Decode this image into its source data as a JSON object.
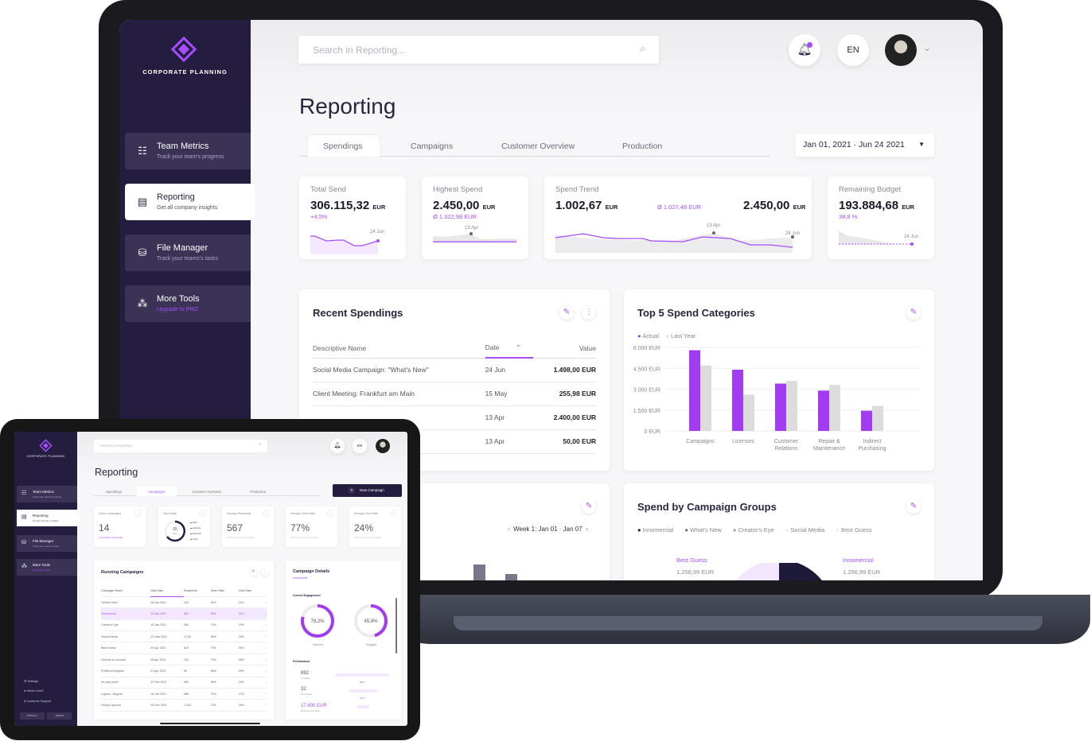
{
  "brand": {
    "name": "CORPORATE PLANNING",
    "accent": "#a64dff",
    "sidebar_bg": "#241d3f"
  },
  "sidebar": {
    "items": [
      {
        "label": "Team Metrics",
        "sub": "Track your team's progress",
        "icon": "team-icon"
      },
      {
        "label": "Reporting",
        "sub": "Get all company insights",
        "icon": "report-icon"
      },
      {
        "label": "File Manager",
        "sub": "Track your teams's tasks",
        "icon": "database-icon"
      },
      {
        "label": "More Tools",
        "sub": "Upgrade to PRO",
        "icon": "tools-icon"
      }
    ],
    "footer": [
      "Settings",
      "What's new?",
      "Customer Support"
    ],
    "links": [
      "PRIVACY",
      "TERMS"
    ]
  },
  "header": {
    "search_placeholder": "Search in Reporting...",
    "language": "EN"
  },
  "page": {
    "title": "Reporting",
    "tabs": [
      "Spendings",
      "Campaigns",
      "Customer Overview",
      "Production"
    ],
    "date_range": "Jan 01, 2021 · Jun 24 2021",
    "new_campaign": "New Campaign"
  },
  "kpis": {
    "total": {
      "label": "Total Send",
      "value": "306.115,32",
      "unit": "EUR",
      "delta": "+4,5%",
      "marker": "24 Jun"
    },
    "highest": {
      "label": "Highest Spend",
      "value": "2.450,00",
      "unit": "EUR",
      "avg": "Ø 1.322,98 EUR",
      "marker": "13 Apr"
    },
    "trend": {
      "label": "Spend Trend",
      "value": "1.002,67",
      "unit": "EUR",
      "avg": "Ø 1.027,48 EUR",
      "value2": "2.450,00",
      "marker1": "13 Apr",
      "marker2": "24 Jun"
    },
    "budget": {
      "label": "Remaining Budget",
      "value": "193.884,68",
      "unit": "EUR",
      "pct": "38,8 %",
      "marker": "24 Jun"
    }
  },
  "recent": {
    "title": "Recent Spendings",
    "columns": [
      "Descriptive Name",
      "Date",
      "Value"
    ],
    "rows": [
      {
        "name": "Social Media Campaign: \"What's New\"",
        "date": "24 Jun",
        "value": "1.498,00 EUR"
      },
      {
        "name": "Client Meeting: Frankfurt am Main",
        "date": "15 May",
        "value": "255,98 EUR"
      },
      {
        "name": "",
        "date": "13 Apr",
        "value": "2.400,00 EUR"
      },
      {
        "name": "",
        "date": "13 Apr",
        "value": "50,00 EUR"
      }
    ]
  },
  "top5": {
    "title": "Top 5 Spend Categories",
    "chart_data": {
      "type": "bar",
      "categories": [
        "Campaigns",
        "Licenses",
        "Customer Relations",
        "Repair & Maintenance",
        "Indirect Purchasing"
      ],
      "series": [
        {
          "name": "Actual",
          "color": "#a23cf0",
          "values": [
            5800,
            4400,
            3400,
            2900,
            1450
          ]
        },
        {
          "name": "Last Year",
          "color": "#dcdcdf",
          "values": [
            4700,
            2600,
            3600,
            3300,
            1800
          ]
        }
      ],
      "yticks": [
        "6.000 EUR",
        "4.500 EUR",
        "3.000 EUR",
        "1.500 EUR",
        "0 EUR"
      ],
      "ylim": [
        0,
        6000
      ]
    }
  },
  "weekly": {
    "week": "Week 1: Jan 01 · Jan 07"
  },
  "groups": {
    "title": "Spend by Campaign Groups",
    "legend": [
      "Innomercial",
      "What's New",
      "Creator's Eye",
      "Social Media",
      "Best Guess"
    ],
    "legend_colors": [
      "#1e1a3a",
      "#6e6a7e",
      "#9a9a9e",
      "#e6e6ea",
      "#f2e6ff"
    ],
    "labels": [
      {
        "name": "Best Guess",
        "value": "1.256,99 EUR"
      },
      {
        "name": "Innomercial",
        "value": "1.256,99 EUR"
      }
    ]
  },
  "tablet": {
    "kpis": [
      {
        "label": "Active Campaigns",
        "value": "14",
        "sub": "2 campaigns ending today"
      },
      {
        "label": "New Deals",
        "value": "65",
        "sub": "Ges.",
        "legend": [
          "SEO",
          "Adwords",
          "Referrals",
          "Other"
        ]
      },
      {
        "label": "Average Recipients",
        "value": "567",
        "sub": "Across 14 running campaigns"
      },
      {
        "label": "Average Open Rate",
        "value": "77%",
        "sub": "Across 14 running campaigns"
      },
      {
        "label": "Average Click Rate",
        "value": "24%",
        "sub": "Across 14 running campaigns"
      }
    ],
    "running": {
      "title": "Running Campaigns",
      "columns": [
        "Campaign Name",
        "Start Date",
        "Recipients",
        "Open Rate",
        "Click Rate"
      ],
      "rows": [
        [
          "\"What's New\"",
          "28 Jan 2021",
          "240",
          "81%",
          "11%"
        ],
        [
          "Innomercial",
          "13 Jan 2021",
          "892",
          "69%",
          "21%"
        ],
        [
          "Creator's Eye",
          "10 Jan 2021",
          "362",
          "74%",
          "19%"
        ],
        [
          "Social Media",
          "22 May 2021",
          "3.235",
          "56%",
          "33%"
        ],
        [
          "Best Guess",
          "09 Apr 2021",
          "625",
          "73%",
          "26%"
        ],
        [
          "24cents in a bucket",
          "06 Apr 2021",
          "102",
          "79%",
          "08%"
        ],
        [
          "Preffered Supplier",
          "01 Apr 2021",
          "96",
          "65%",
          "06%"
        ],
        [
          "No way back!",
          "22 Feb 2021",
          "869",
          "89%",
          "29%"
        ],
        [
          "Logical - Illogical",
          "16 Jan 2021",
          "586",
          "71%",
          "37%"
        ],
        [
          "Friday's special",
          "05 Dec 2020",
          "1.024",
          "73%",
          "28%"
        ]
      ],
      "selected": 1
    },
    "details": {
      "title": "Campaign Details",
      "subtitle": "Innomercial",
      "engagement_label": "Current Engagement",
      "rings": [
        {
          "value": "79,2%",
          "label": "Nurtured",
          "pct": 79.2
        },
        {
          "value": "45,8%",
          "label": "Engaged",
          "pct": 45.8
        }
      ],
      "performance_label": "Performance",
      "perf": [
        {
          "value": "892",
          "label": "Contacts",
          "pct": "69%"
        },
        {
          "value": "32",
          "label": "New Deals",
          "pct": "31%"
        },
        {
          "value": "17.600 EUR",
          "label": "Revenue Increase"
        }
      ]
    }
  }
}
